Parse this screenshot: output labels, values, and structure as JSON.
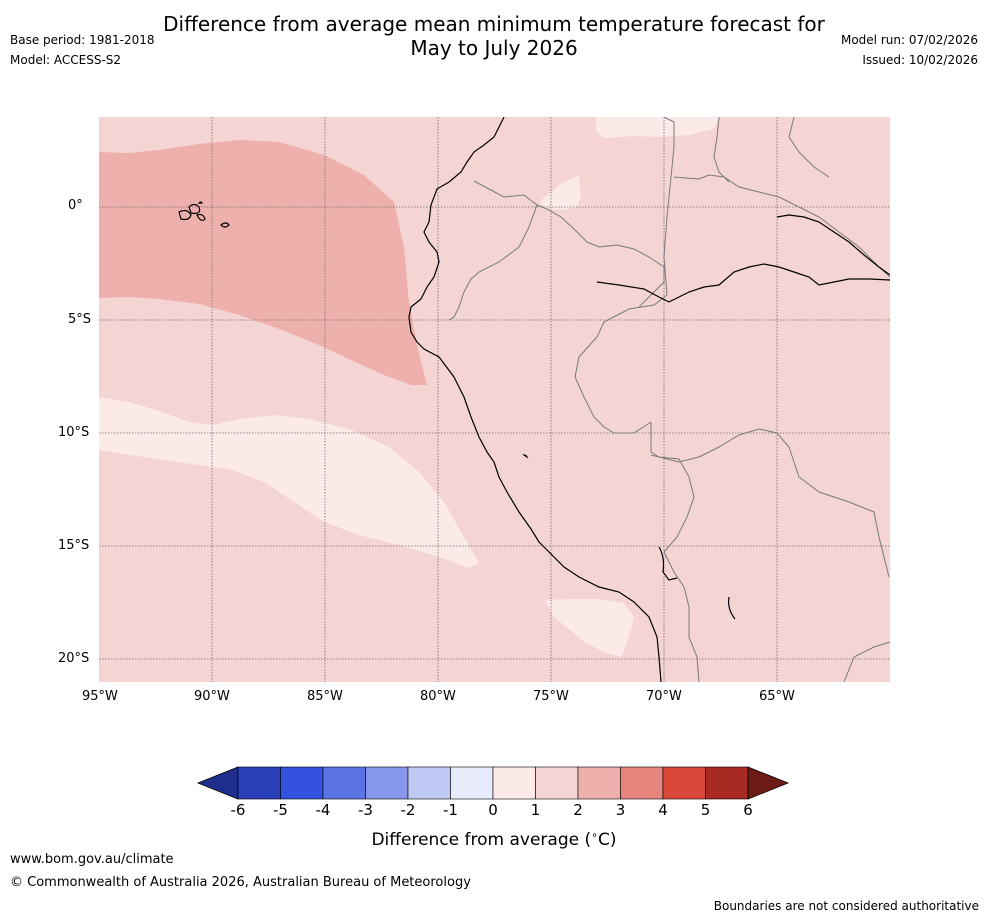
{
  "title": "Difference from average mean minimum temperature forecast for",
  "subtitle": "May to July 2026",
  "meta_left": {
    "base_period": "Base period: 1981-2018",
    "model": "Model: ACCESS-S2"
  },
  "meta_right": {
    "model_run": "Model run: 07/02/2026",
    "issued": "Issued: 10/02/2026"
  },
  "map": {
    "lat_labels": [
      "0°",
      "5°S",
      "10°S",
      "15°S",
      "20°S"
    ],
    "lon_labels": [
      "95°W",
      "90°W",
      "85°W",
      "80°W",
      "75°W",
      "70°W",
      "65°W"
    ],
    "anomaly_classes": {
      "background": "1 to 2",
      "ocean_warm_band": "2 to 3",
      "coastal_cool_band": "0 to 1",
      "south_patch": "0 to 1",
      "north_patch": "0 to 1"
    }
  },
  "colorbar": {
    "tick_labels": [
      "-6",
      "-5",
      "-4",
      "-3",
      "-2",
      "-1",
      "0",
      "1",
      "2",
      "3",
      "4",
      "5",
      "6"
    ],
    "colors": [
      "#1f2e8c",
      "#2a3fb8",
      "#3452e0",
      "#5c73e6",
      "#8696ea",
      "#c0c8f4",
      "#e8ebfb",
      "#fbeae8",
      "#f5d5d3",
      "#eeb0ac",
      "#e6857d",
      "#d9473a",
      "#a92a22",
      "#6e1a16"
    ],
    "title": "Difference from average ($^\\circ$C)"
  },
  "footer": {
    "website": "www.bom.gov.au/climate",
    "copyright": "© Commonwealth of Australia 2026, Australian Bureau of Meteorology",
    "disclaimer": "Boundaries are not considered authoritative"
  }
}
